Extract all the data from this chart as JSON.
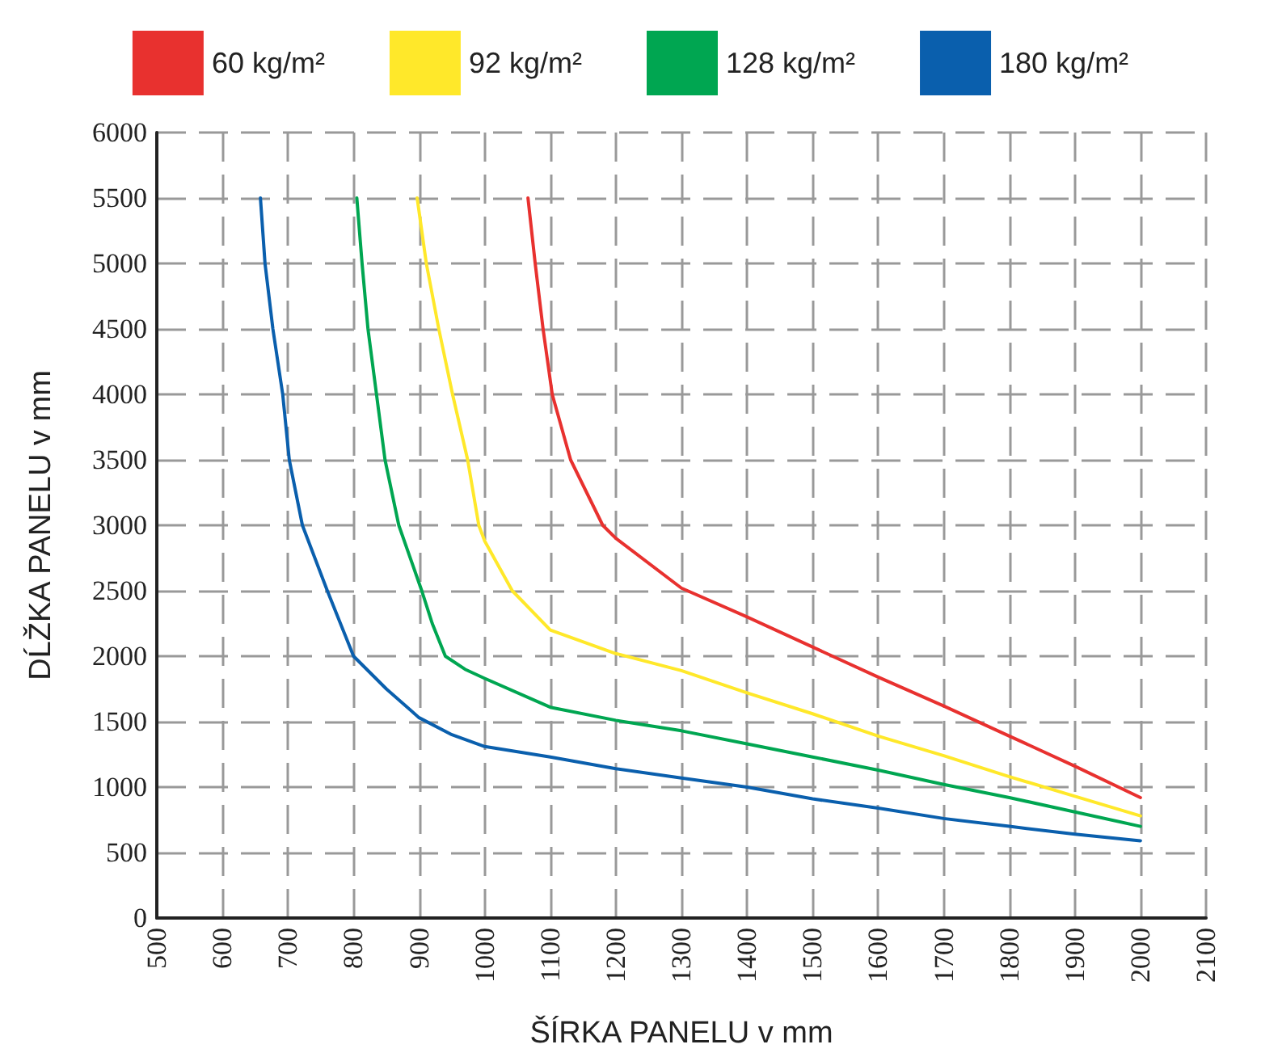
{
  "chart_data": {
    "type": "line",
    "xlabel": "ŠÍRKA PANELU v mm",
    "ylabel": "DĹŽKA PANELU v mm",
    "xlim": [
      500,
      2100
    ],
    "xticks": [
      500,
      600,
      700,
      800,
      900,
      1000,
      1100,
      1200,
      1300,
      1400,
      1500,
      1600,
      1700,
      1800,
      1900,
      2000,
      2100
    ],
    "ylim": [
      0,
      6000
    ],
    "yticks": [
      0,
      500,
      1000,
      1500,
      2000,
      2500,
      3000,
      3500,
      4000,
      4500,
      5000,
      5500,
      6000
    ],
    "grid": true,
    "legend": "top",
    "marker": "none",
    "line_style": "solid",
    "series": [
      {
        "name": "60 kg/m²",
        "color": "#e8312f",
        "x": [
          1066,
          1077,
          1089,
          1103,
          1131,
          1180,
          1200,
          1300,
          1400,
          1500,
          1600,
          1700,
          1800,
          1900,
          2000
        ],
        "values": [
          5500,
          5000,
          4500,
          4000,
          3500,
          3000,
          2900,
          2520,
          2300,
          2070,
          1840,
          1620,
          1390,
          1160,
          920
        ]
      },
      {
        "name": "92 kg/m²",
        "color": "#ffe82a",
        "x": [
          897,
          911,
          930,
          951,
          974,
          991,
          1000,
          1042,
          1100,
          1200,
          1300,
          1400,
          1500,
          1600,
          1700,
          1800,
          1900,
          2000
        ],
        "values": [
          5500,
          5000,
          4500,
          4000,
          3500,
          3000,
          2880,
          2500,
          2200,
          2020,
          1890,
          1720,
          1560,
          1390,
          1240,
          1080,
          930,
          780
        ]
      },
      {
        "name": "128 kg/m²",
        "color": "#00a651",
        "x": [
          805,
          813,
          822,
          835,
          848,
          869,
          904,
          920,
          940,
          970,
          1000,
          1100,
          1200,
          1300,
          1400,
          1500,
          1600,
          1700,
          1800,
          1900,
          2000
        ],
        "values": [
          5500,
          5000,
          4500,
          4000,
          3500,
          3000,
          2500,
          2250,
          2000,
          1900,
          1830,
          1610,
          1510,
          1430,
          1330,
          1230,
          1130,
          1020,
          920,
          810,
          700
        ]
      },
      {
        "name": "180 kg/m²",
        "color": "#0a5fad",
        "x": [
          658,
          665,
          677,
          692,
          702,
          722,
          760,
          800,
          850,
          900,
          950,
          1000,
          1100,
          1200,
          1300,
          1400,
          1500,
          1600,
          1700,
          1800,
          1900,
          2000
        ],
        "values": [
          5500,
          5000,
          4500,
          4000,
          3500,
          3000,
          2500,
          2000,
          1750,
          1530,
          1400,
          1310,
          1230,
          1140,
          1070,
          1000,
          910,
          840,
          760,
          700,
          640,
          590
        ]
      }
    ]
  }
}
